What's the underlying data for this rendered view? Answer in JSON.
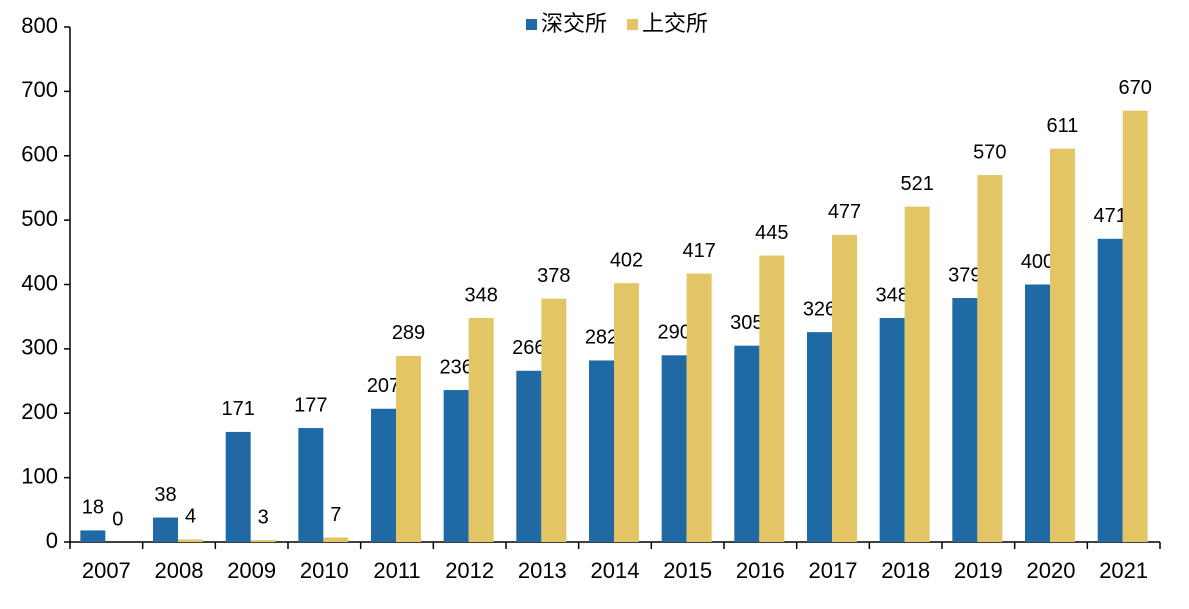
{
  "chart_data": {
    "type": "bar",
    "categories": [
      "2007",
      "2008",
      "2009",
      "2010",
      "2011",
      "2012",
      "2013",
      "2014",
      "2015",
      "2016",
      "2017",
      "2018",
      "2019",
      "2020",
      "2021"
    ],
    "series": [
      {
        "name": "深交所",
        "color": "#1f6aa5",
        "values": [
          18,
          38,
          171,
          177,
          207,
          236,
          266,
          282,
          290,
          305,
          326,
          348,
          379,
          400,
          471
        ]
      },
      {
        "name": "上交所",
        "color": "#e3c566",
        "values": [
          0,
          4,
          3,
          7,
          289,
          348,
          378,
          402,
          417,
          445,
          477,
          521,
          570,
          611,
          670
        ]
      }
    ],
    "ylim": [
      0,
      800
    ],
    "yticks": [
      0,
      100,
      200,
      300,
      400,
      500,
      600,
      700,
      800
    ],
    "grid": false,
    "legend": "top"
  }
}
